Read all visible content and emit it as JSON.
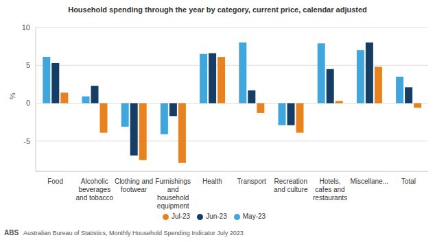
{
  "chart_data": {
    "type": "bar",
    "title": "Household spending through the year by category, current price, calendar adjusted",
    "y_label": "%",
    "source": "Australian Bureau of Statistics, Monthly Household Spending Indicator July 2023",
    "annotations": [
      "ABS"
    ],
    "categories": [
      "Food",
      "Alcoholic beverages and tobacco",
      "Clothing and footwear",
      "Furnishings and household equipment",
      "Health",
      "Transport",
      "Recreation and culture",
      "Hotels, cafes and restaurants",
      "Miscellane...",
      "Total"
    ],
    "series": [
      {
        "name": "May-23",
        "color": "#41a6dc",
        "values": [
          6.1,
          0.9,
          -3.1,
          -4.1,
          6.5,
          8.0,
          -2.9,
          7.9,
          7.0,
          3.5
        ]
      },
      {
        "name": "Jun-23",
        "color": "#163e64",
        "values": [
          5.3,
          2.3,
          -6.9,
          -1.7,
          6.6,
          1.7,
          -2.9,
          4.5,
          8.0,
          2.1
        ]
      },
      {
        "name": "Jul-23",
        "color": "#e8821e",
        "values": [
          1.4,
          -3.9,
          -7.5,
          -7.9,
          6.1,
          -1.3,
          -3.9,
          0.3,
          4.8,
          -0.6
        ]
      }
    ],
    "ylim": [
      -9,
      10
    ],
    "yticks": [
      -5,
      0,
      5,
      10
    ],
    "grid": true,
    "legend": "bottom"
  }
}
